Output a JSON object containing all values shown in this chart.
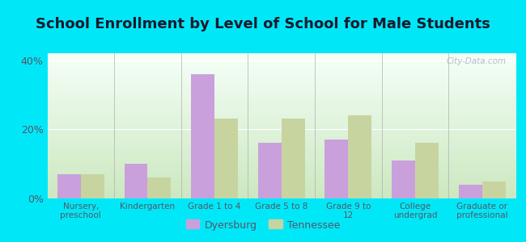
{
  "title": "School Enrollment by Level of School for Male Students",
  "categories": [
    "Nursery,\npreschool",
    "Kindergarten",
    "Grade 1 to 4",
    "Grade 5 to 8",
    "Grade 9 to\n12",
    "College\nundergrad",
    "Graduate or\nprofessional"
  ],
  "dyersburg": [
    7,
    10,
    36,
    16,
    17,
    11,
    4
  ],
  "tennessee": [
    7,
    6,
    23,
    23,
    24,
    16,
    5
  ],
  "dyersburg_color": "#c9a0dc",
  "tennessee_color": "#c8d4a0",
  "background_outer": "#00e8f8",
  "yticks": [
    0,
    20,
    40
  ],
  "ylim": [
    0,
    42
  ],
  "bar_width": 0.35,
  "title_fontsize": 13,
  "title_color": "#1a1a2e",
  "legend_labels": [
    "Dyersburg",
    "Tennessee"
  ],
  "watermark": "City-Data.com",
  "grad_top": "#f5fff8",
  "grad_bottom": "#cce8c0",
  "tick_color": "#555566"
}
